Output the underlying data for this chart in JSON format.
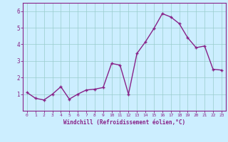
{
  "x": [
    0,
    1,
    2,
    3,
    4,
    5,
    6,
    7,
    8,
    9,
    10,
    11,
    12,
    13,
    14,
    15,
    16,
    17,
    18,
    19,
    20,
    21,
    22,
    23
  ],
  "y": [
    1.1,
    0.75,
    0.65,
    1.0,
    1.45,
    0.7,
    1.0,
    1.25,
    1.3,
    1.4,
    2.85,
    2.75,
    1.0,
    3.45,
    4.15,
    4.95,
    5.85,
    5.65,
    5.25,
    4.4,
    3.8,
    3.9,
    2.5,
    2.45
  ],
  "line_color": "#882288",
  "marker": "+",
  "background_color": "#cceeff",
  "grid_color": "#99cccc",
  "xlabel": "Windchill (Refroidissement éolien,°C)",
  "ylim": [
    0,
    6.5
  ],
  "xlim": [
    -0.5,
    23.5
  ],
  "yticks": [
    1,
    2,
    3,
    4,
    5,
    6
  ],
  "xticks": [
    0,
    1,
    2,
    3,
    4,
    5,
    6,
    7,
    8,
    9,
    10,
    11,
    12,
    13,
    14,
    15,
    16,
    17,
    18,
    19,
    20,
    21,
    22,
    23
  ],
  "spine_color": "#882288",
  "tick_color": "#882288",
  "label_color": "#882288",
  "marker_size": 3,
  "linewidth": 1.0
}
